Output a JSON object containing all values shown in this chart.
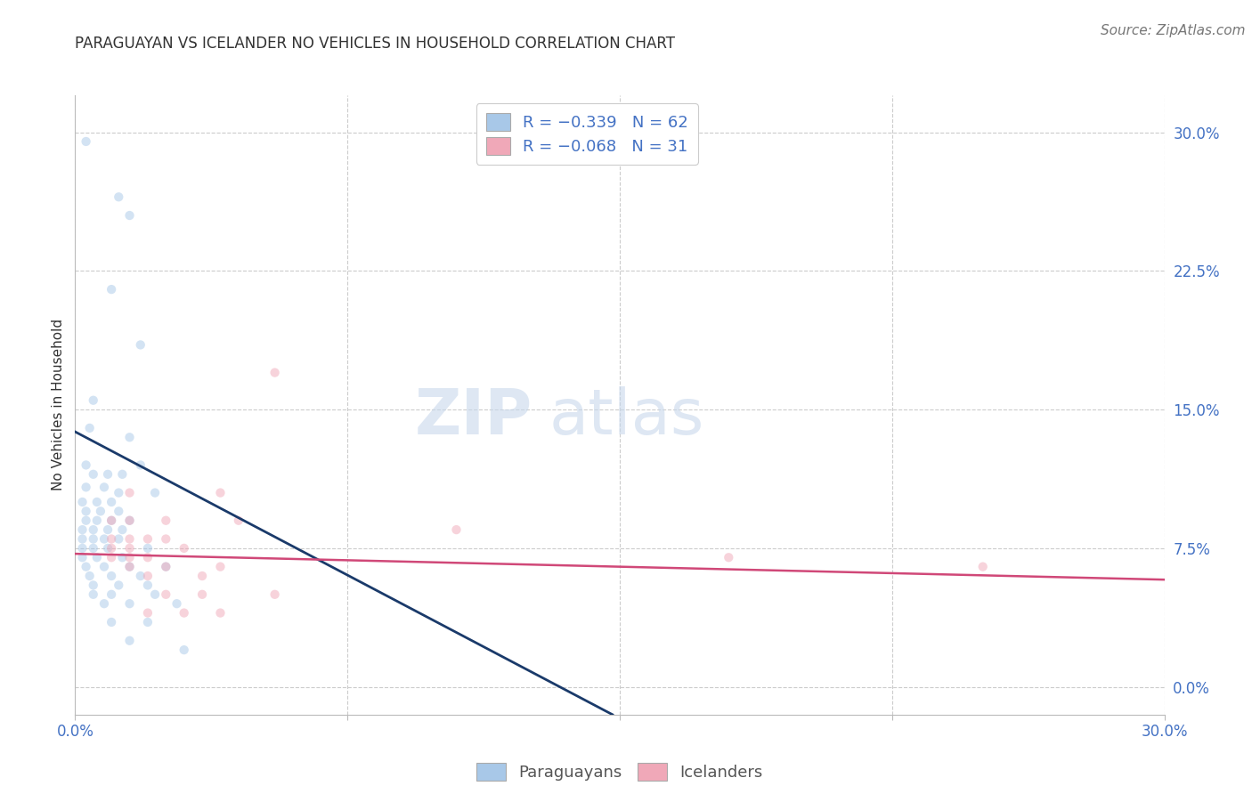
{
  "title": "PARAGUAYAN VS ICELANDER NO VEHICLES IN HOUSEHOLD CORRELATION CHART",
  "source": "Source: ZipAtlas.com",
  "ylabel": "No Vehicles in Household",
  "watermark_zip": "ZIP",
  "watermark_atlas": "atlas",
  "xlim": [
    0.0,
    30.0
  ],
  "ylim": [
    -1.5,
    32.0
  ],
  "yticks": [
    0.0,
    7.5,
    15.0,
    22.5,
    30.0
  ],
  "xticks": [
    0.0,
    7.5,
    15.0,
    22.5,
    30.0
  ],
  "legend_r1": "R = −0.339",
  "legend_n1": "N = 62",
  "legend_r2": "R = −0.068",
  "legend_n2": "N = 31",
  "blue_color": "#A8C8E8",
  "blue_line_color": "#1A3A6A",
  "pink_color": "#F0A8B8",
  "pink_line_color": "#D04878",
  "tick_color": "#4472C4",
  "blue_scatter": [
    [
      0.3,
      29.5
    ],
    [
      1.2,
      26.5
    ],
    [
      1.5,
      25.5
    ],
    [
      1.0,
      21.5
    ],
    [
      1.8,
      18.5
    ],
    [
      0.5,
      15.5
    ],
    [
      0.4,
      14.0
    ],
    [
      1.5,
      13.5
    ],
    [
      0.3,
      12.0
    ],
    [
      1.8,
      12.0
    ],
    [
      0.5,
      11.5
    ],
    [
      0.9,
      11.5
    ],
    [
      1.3,
      11.5
    ],
    [
      0.3,
      10.8
    ],
    [
      0.8,
      10.8
    ],
    [
      1.2,
      10.5
    ],
    [
      2.2,
      10.5
    ],
    [
      0.2,
      10.0
    ],
    [
      0.6,
      10.0
    ],
    [
      1.0,
      10.0
    ],
    [
      0.3,
      9.5
    ],
    [
      0.7,
      9.5
    ],
    [
      1.2,
      9.5
    ],
    [
      0.3,
      9.0
    ],
    [
      0.6,
      9.0
    ],
    [
      1.0,
      9.0
    ],
    [
      1.5,
      9.0
    ],
    [
      0.2,
      8.5
    ],
    [
      0.5,
      8.5
    ],
    [
      0.9,
      8.5
    ],
    [
      1.3,
      8.5
    ],
    [
      0.2,
      8.0
    ],
    [
      0.5,
      8.0
    ],
    [
      0.8,
      8.0
    ],
    [
      1.2,
      8.0
    ],
    [
      0.2,
      7.5
    ],
    [
      0.5,
      7.5
    ],
    [
      0.9,
      7.5
    ],
    [
      2.0,
      7.5
    ],
    [
      0.2,
      7.0
    ],
    [
      0.6,
      7.0
    ],
    [
      1.3,
      7.0
    ],
    [
      0.3,
      6.5
    ],
    [
      0.8,
      6.5
    ],
    [
      1.5,
      6.5
    ],
    [
      2.5,
      6.5
    ],
    [
      0.4,
      6.0
    ],
    [
      1.0,
      6.0
    ],
    [
      1.8,
      6.0
    ],
    [
      0.5,
      5.5
    ],
    [
      1.2,
      5.5
    ],
    [
      2.0,
      5.5
    ],
    [
      0.5,
      5.0
    ],
    [
      1.0,
      5.0
    ],
    [
      2.2,
      5.0
    ],
    [
      0.8,
      4.5
    ],
    [
      1.5,
      4.5
    ],
    [
      2.8,
      4.5
    ],
    [
      1.0,
      3.5
    ],
    [
      2.0,
      3.5
    ],
    [
      1.5,
      2.5
    ],
    [
      3.0,
      2.0
    ]
  ],
  "pink_scatter": [
    [
      5.5,
      17.0
    ],
    [
      1.5,
      10.5
    ],
    [
      4.0,
      10.5
    ],
    [
      1.0,
      9.0
    ],
    [
      1.5,
      9.0
    ],
    [
      2.5,
      9.0
    ],
    [
      4.5,
      9.0
    ],
    [
      1.0,
      8.0
    ],
    [
      1.5,
      8.0
    ],
    [
      2.0,
      8.0
    ],
    [
      2.5,
      8.0
    ],
    [
      1.0,
      7.5
    ],
    [
      1.5,
      7.5
    ],
    [
      3.0,
      7.5
    ],
    [
      1.0,
      7.0
    ],
    [
      1.5,
      7.0
    ],
    [
      2.0,
      7.0
    ],
    [
      1.5,
      6.5
    ],
    [
      2.5,
      6.5
    ],
    [
      4.0,
      6.5
    ],
    [
      2.0,
      6.0
    ],
    [
      3.5,
      6.0
    ],
    [
      2.5,
      5.0
    ],
    [
      3.5,
      5.0
    ],
    [
      5.5,
      5.0
    ],
    [
      2.0,
      4.0
    ],
    [
      3.0,
      4.0
    ],
    [
      4.0,
      4.0
    ],
    [
      10.5,
      8.5
    ],
    [
      18.0,
      7.0
    ],
    [
      25.0,
      6.5
    ]
  ],
  "blue_trendline_x": [
    0.0,
    14.8
  ],
  "blue_trendline_y": [
    13.8,
    -1.5
  ],
  "pink_trendline_x": [
    0.0,
    30.0
  ],
  "pink_trendline_y": [
    7.2,
    5.8
  ],
  "title_fontsize": 12,
  "axis_label_fontsize": 11,
  "tick_fontsize": 12,
  "legend_fontsize": 13,
  "source_fontsize": 11,
  "watermark_fontsize_zip": 52,
  "watermark_fontsize_atlas": 52,
  "scatter_size": 55,
  "scatter_alpha": 0.5,
  "background_color": "#FFFFFF"
}
